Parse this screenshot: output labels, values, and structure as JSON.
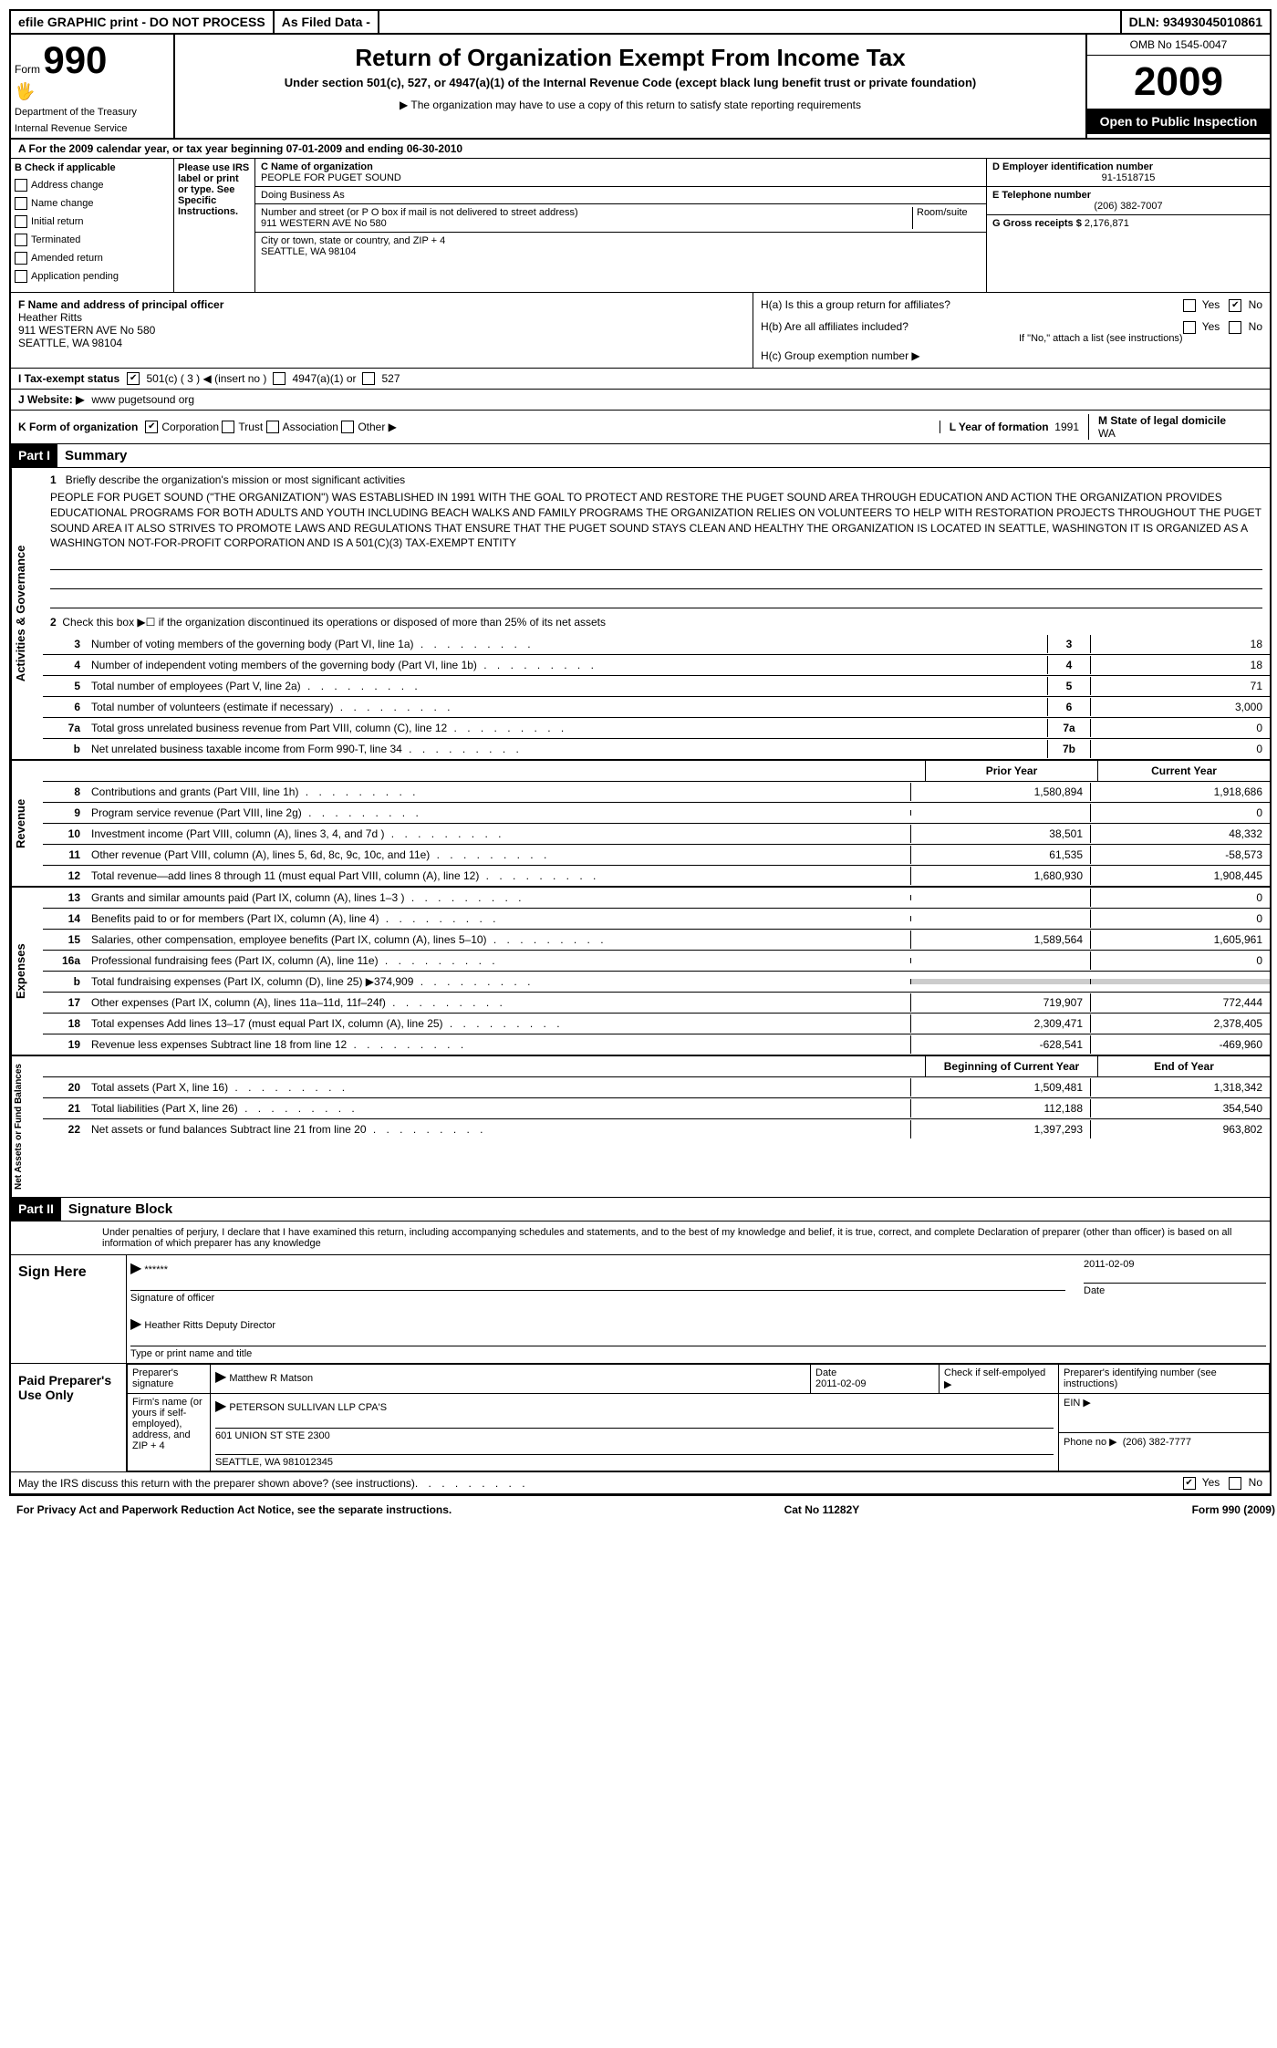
{
  "topbar": {
    "efile": "efile GRAPHIC print - DO NOT PROCESS",
    "asfiled": "As Filed Data -",
    "dln": "DLN: 93493045010861"
  },
  "header": {
    "form_label": "Form",
    "form_num": "990",
    "dept1": "Department of the Treasury",
    "dept2": "Internal Revenue Service",
    "title": "Return of Organization Exempt From Income Tax",
    "subtitle": "Under section 501(c), 527, or 4947(a)(1) of the Internal Revenue Code (except black lung benefit trust or private foundation)",
    "note": "▶ The organization may have to use a copy of this return to satisfy state reporting requirements",
    "omb": "OMB No 1545-0047",
    "year": "2009",
    "open_public": "Open to Public Inspection"
  },
  "sectionA": "A  For the 2009 calendar year, or tax year beginning 07-01-2009    and ending 06-30-2010",
  "colB": {
    "header": "B Check if applicable",
    "items": [
      "Address change",
      "Name change",
      "Initial return",
      "Terminated",
      "Amended return",
      "Application pending"
    ]
  },
  "colIRS": "Please use IRS label or print or type. See Specific Instruc­tions.",
  "colC": {
    "name_label": "C Name of organization",
    "name": "PEOPLE FOR PUGET SOUND",
    "dba_label": "Doing Business As",
    "street_label": "Number and street (or P O  box if mail is not delivered to street address)",
    "room_label": "Room/suite",
    "street": "911 WESTERN AVE No 580",
    "city_label": "City or town, state or country, and ZIP + 4",
    "city": "SEATTLE, WA  98104"
  },
  "colD": {
    "ein_label": "D Employer identification number",
    "ein": "91-1518715",
    "tel_label": "E Telephone number",
    "tel": "(206) 382-7007",
    "gross_label": "G Gross receipts $",
    "gross": "2,176,871"
  },
  "rowF": {
    "label": "F  Name and address of principal officer",
    "name": "Heather Ritts",
    "addr1": "911 WESTERN AVE No 580",
    "addr2": "SEATTLE, WA  98104"
  },
  "rowH": {
    "ha": "H(a)  Is this a group return for affiliates?",
    "hb": "H(b)  Are all affiliates included?",
    "hb_note": "If \"No,\" attach a list  (see instructions)",
    "hc": "H(c)   Group exemption number ▶"
  },
  "rowI": {
    "label": "I  Tax-exempt status",
    "opt1": "501(c) ( 3 ) ◀ (insert no )",
    "opt2": "4947(a)(1) or",
    "opt3": "527"
  },
  "rowJ": {
    "label": "J  Website: ▶",
    "value": "www pugetsound org"
  },
  "rowK": {
    "label": "K Form of organization",
    "opts": [
      "Corporation",
      "Trust",
      "Association",
      "Other ▶"
    ]
  },
  "rowL": {
    "label": "L Year of formation",
    "value": "1991"
  },
  "rowM": {
    "label": "M State of legal domicile",
    "value": "WA"
  },
  "part1": {
    "header": "Part I",
    "title": "Summary",
    "line1_label": "1",
    "line1_desc": "Briefly describe the organization's mission or most significant activities",
    "mission": "PEOPLE FOR PUGET SOUND (\"THE ORGANIZATION\") WAS ESTABLISHED IN 1991 WITH THE GOAL TO PROTECT AND RESTORE THE PUGET SOUND AREA THROUGH EDUCATION AND ACTION  THE ORGANIZATION PROVIDES EDUCATIONAL PROGRAMS FOR BOTH ADULTS AND YOUTH INCLUDING BEACH WALKS AND FAMILY PROGRAMS  THE ORGANIZATION RELIES ON VOLUNTEERS TO HELP WITH RESTORATION PROJECTS THROUGHOUT THE PUGET SOUND AREA  IT ALSO STRIVES TO PROMOTE LAWS AND REGULATIONS THAT ENSURE THAT THE PUGET SOUND STAYS CLEAN AND HEALTHY  THE ORGANIZATION IS LOCATED IN SEATTLE, WASHINGTON  IT IS ORGANIZED AS A WASHINGTON NOT-FOR-PROFIT CORPORATION AND IS A 501(C)(3) TAX-EXEMPT ENTITY",
    "line2": "Check this box ▶☐ if the organization discontinued its operations or disposed of more than 25% of its net assets",
    "activities": [
      {
        "num": "3",
        "desc": "Number of voting members of the governing body (Part VI, line 1a)",
        "lbl": "3",
        "val": "18"
      },
      {
        "num": "4",
        "desc": "Number of independent voting members of the governing body (Part VI, line 1b)",
        "lbl": "4",
        "val": "18"
      },
      {
        "num": "5",
        "desc": "Total number of employees (Part V, line 2a)",
        "lbl": "5",
        "val": "71"
      },
      {
        "num": "6",
        "desc": "Total number of volunteers (estimate if necessary)",
        "lbl": "6",
        "val": "3,000"
      },
      {
        "num": "7a",
        "desc": "Total gross unrelated business revenue from Part VIII, column (C), line 12",
        "lbl": "7a",
        "val": "0"
      },
      {
        "num": "b",
        "desc": "Net unrelated business taxable income from Form 990-T, line 34",
        "lbl": "7b",
        "val": "0"
      }
    ],
    "col_prior": "Prior Year",
    "col_current": "Current Year",
    "revenue": [
      {
        "num": "8",
        "desc": "Contributions and grants (Part VIII, line 1h)",
        "prior": "1,580,894",
        "curr": "1,918,686"
      },
      {
        "num": "9",
        "desc": "Program service revenue (Part VIII, line 2g)",
        "prior": "",
        "curr": "0"
      },
      {
        "num": "10",
        "desc": "Investment income (Part VIII, column (A), lines 3, 4, and 7d )",
        "prior": "38,501",
        "curr": "48,332"
      },
      {
        "num": "11",
        "desc": "Other revenue (Part VIII, column (A), lines 5, 6d, 8c, 9c, 10c, and 11e)",
        "prior": "61,535",
        "curr": "-58,573"
      },
      {
        "num": "12",
        "desc": "Total revenue—add lines 8 through 11 (must equal Part VIII, column (A), line 12)",
        "prior": "1,680,930",
        "curr": "1,908,445"
      }
    ],
    "expenses": [
      {
        "num": "13",
        "desc": "Grants and similar amounts paid (Part IX, column (A), lines 1–3 )",
        "prior": "",
        "curr": "0"
      },
      {
        "num": "14",
        "desc": "Benefits paid to or for members (Part IX, column (A), line 4)",
        "prior": "",
        "curr": "0"
      },
      {
        "num": "15",
        "desc": "Salaries, other compensation, employee benefits (Part IX, column (A), lines 5–10)",
        "prior": "1,589,564",
        "curr": "1,605,961"
      },
      {
        "num": "16a",
        "desc": "Professional fundraising fees (Part IX, column (A), line 11e)",
        "prior": "",
        "curr": "0"
      },
      {
        "num": "b",
        "desc": "Total fundraising expenses (Part IX, column (D), line 25) ▶374,909",
        "prior": "",
        "curr": ""
      },
      {
        "num": "17",
        "desc": "Other expenses (Part IX, column (A), lines 11a–11d, 11f–24f)",
        "prior": "719,907",
        "curr": "772,444"
      },
      {
        "num": "18",
        "desc": "Total expenses  Add lines 13–17 (must equal Part IX, column (A), line 25)",
        "prior": "2,309,471",
        "curr": "2,378,405"
      },
      {
        "num": "19",
        "desc": "Revenue less expenses  Subtract line 18 from line 12",
        "prior": "-628,541",
        "curr": "-469,960"
      }
    ],
    "col_begin": "Beginning of Current Year",
    "col_end": "End of Year",
    "netassets": [
      {
        "num": "20",
        "desc": "Total assets (Part X, line 16)",
        "prior": "1,509,481",
        "curr": "1,318,342"
      },
      {
        "num": "21",
        "desc": "Total liabilities (Part X, line 26)",
        "prior": "112,188",
        "curr": "354,540"
      },
      {
        "num": "22",
        "desc": "Net assets or fund balances  Subtract line 21 from line 20",
        "prior": "1,397,293",
        "curr": "963,802"
      }
    ]
  },
  "part2": {
    "header": "Part II",
    "title": "Signature Block",
    "perjury": "Under penalties of perjury, I declare that I have examined this return, including accompanying schedules and statements, and to the best of my knowledge and belief, it is true, correct, and complete  Declaration of preparer (other than officer) is based on all information of which preparer has any knowledge",
    "sign_here": "Sign Here",
    "stars": "******",
    "sig_officer": "Signature of officer",
    "date1": "2011-02-09",
    "date_label": "Date",
    "officer_name": "Heather Ritts Deputy Director",
    "type_print": "Type or print name and title",
    "paid_label": "Paid Preparer's Use Only",
    "prep_sig": "Preparer's signature",
    "prep_name": "Matthew R Matson",
    "date2": "2011-02-09",
    "check_self": "Check if self-empolyed ▶",
    "prep_id": "Preparer's identifying number (see instructions)",
    "firm_label": "Firm's name (or yours if self-employed), address, and ZIP + 4",
    "firm_name": "PETERSON SULLIVAN LLP CPA'S",
    "firm_addr1": "601 UNION ST STE 2300",
    "firm_addr2": "SEATTLE, WA  981012345",
    "ein_label": "EIN ▶",
    "phone_label": "Phone no  ▶",
    "phone": "(206) 382-7777",
    "discuss": "May the IRS discuss this return with the preparer shown above? (see instructions)"
  },
  "footer": {
    "privacy": "For Privacy Act and Paperwork Reduction Act Notice, see the separate instructions.",
    "cat": "Cat No 11282Y",
    "form": "Form 990 (2009)"
  },
  "vert_labels": {
    "activities": "Activities & Governance",
    "revenue": "Revenue",
    "expenses": "Expenses",
    "netassets": "Net Assets or Fund Balances"
  }
}
